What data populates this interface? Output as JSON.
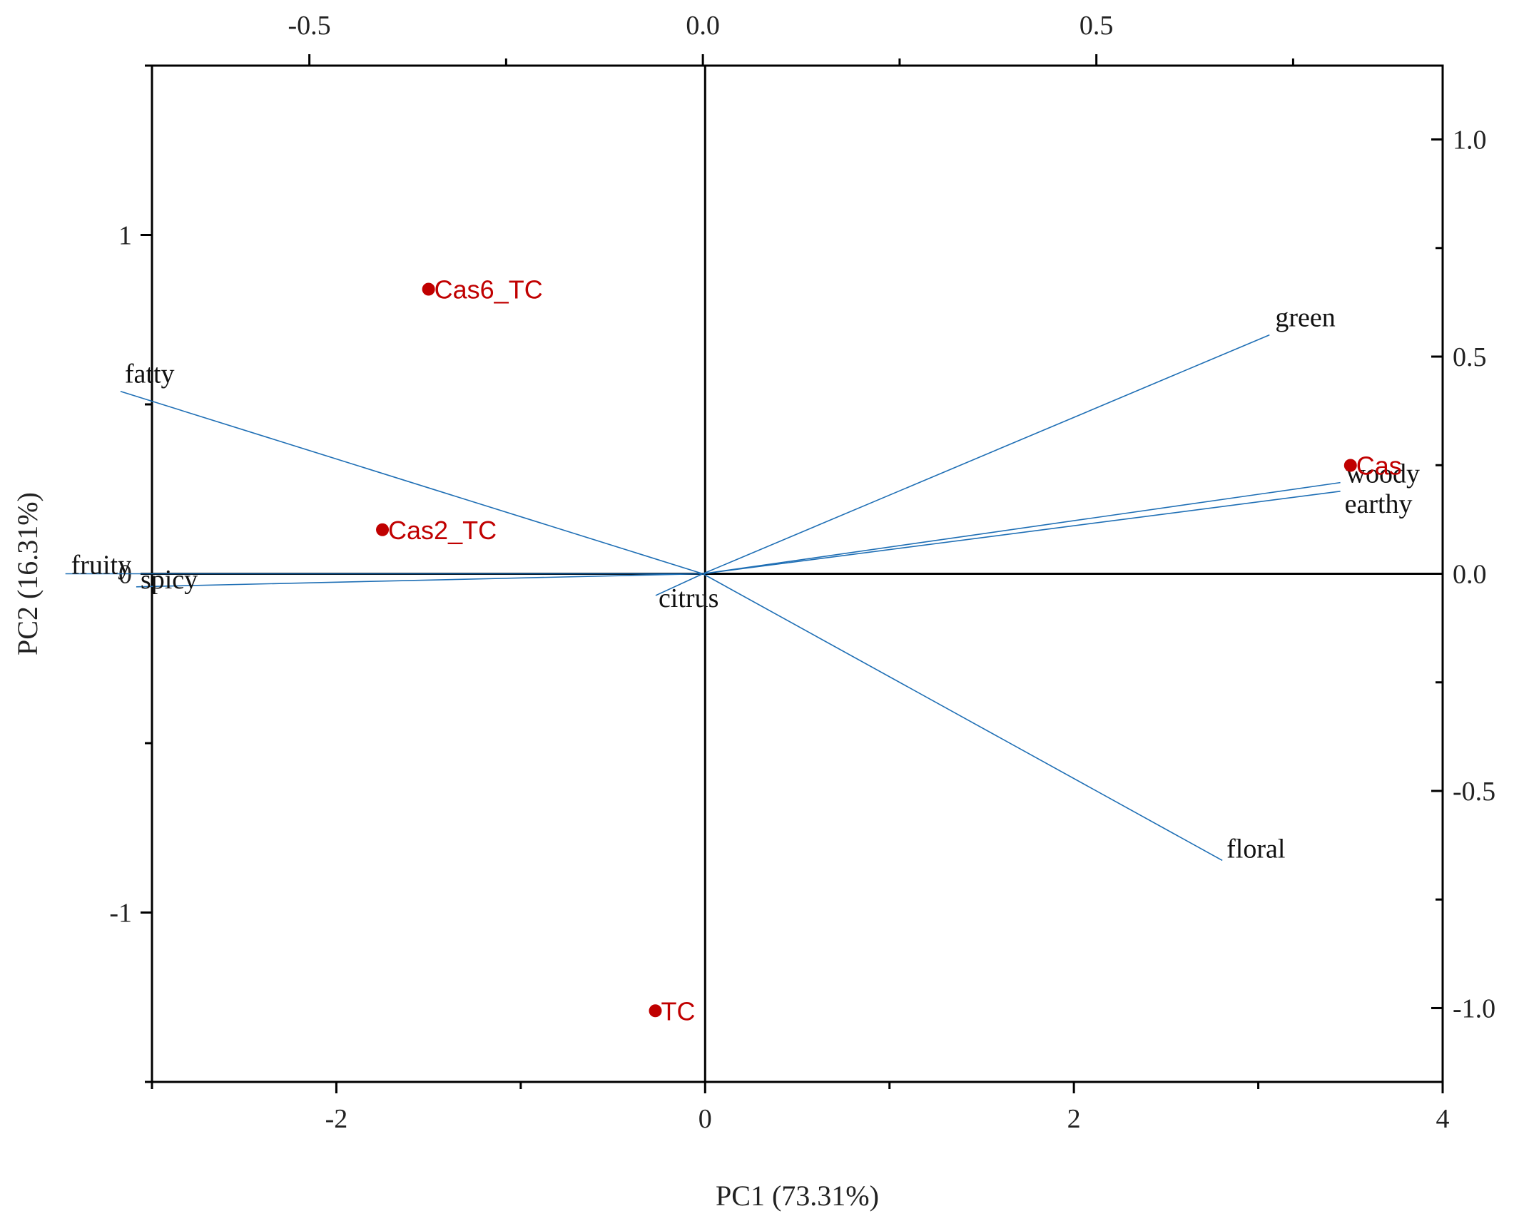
{
  "chart_data": {
    "type": "scatter",
    "subtype": "biplot",
    "title": "",
    "xlabel": "PC1 (73.31%)",
    "ylabel": "PC2 (16.31%)",
    "xlim": [
      -3,
      4
    ],
    "ylim": [
      -1.5,
      1.5
    ],
    "x_ticks": [
      "-2",
      "0",
      "2",
      "4"
    ],
    "x_tick_values": [
      -2,
      0,
      2,
      4
    ],
    "y_ticks": [
      "-1",
      "0",
      "1"
    ],
    "y_tick_values": [
      -1,
      0,
      1
    ],
    "top_axis": {
      "lim": [
        -0.7,
        0.94
      ],
      "ticks": [
        "-0.5",
        "0.0",
        "0.5"
      ],
      "tick_values": [
        -0.5,
        0,
        0.5
      ]
    },
    "right_axis": {
      "lim": [
        -1.17,
        1.17
      ],
      "ticks": [
        "1.0",
        "0.5",
        "0.0",
        "-0.5",
        "-1.0"
      ],
      "tick_values": [
        1.0,
        0.5,
        0.0,
        -0.5,
        -1.0
      ]
    },
    "grid": false,
    "legend": "none",
    "observations": {
      "color": "#c00000",
      "points": [
        {
          "label": "Cas6_TC",
          "x": -1.5,
          "y": 0.84
        },
        {
          "label": "Cas2_TC",
          "x": -1.75,
          "y": 0.13
        },
        {
          "label": "Cas",
          "x": 3.5,
          "y": 0.32
        },
        {
          "label": "TC",
          "x": -0.27,
          "y": -1.29
        }
      ]
    },
    "loadings": {
      "color": "#1f6fb5",
      "vectors": [
        {
          "label": "green",
          "x": 0.72,
          "y": 0.55
        },
        {
          "label": "fatty",
          "x": -0.74,
          "y": 0.42
        },
        {
          "label": "woody",
          "x": 0.81,
          "y": 0.21
        },
        {
          "label": "earthy",
          "x": 0.81,
          "y": 0.19
        },
        {
          "label": "fruity",
          "x": -0.81,
          "y": 0.0
        },
        {
          "label": "spicy",
          "x": -0.72,
          "y": -0.03
        },
        {
          "label": "citrus",
          "x": -0.06,
          "y": -0.05
        },
        {
          "label": "floral",
          "x": 0.66,
          "y": -0.66
        }
      ]
    }
  }
}
